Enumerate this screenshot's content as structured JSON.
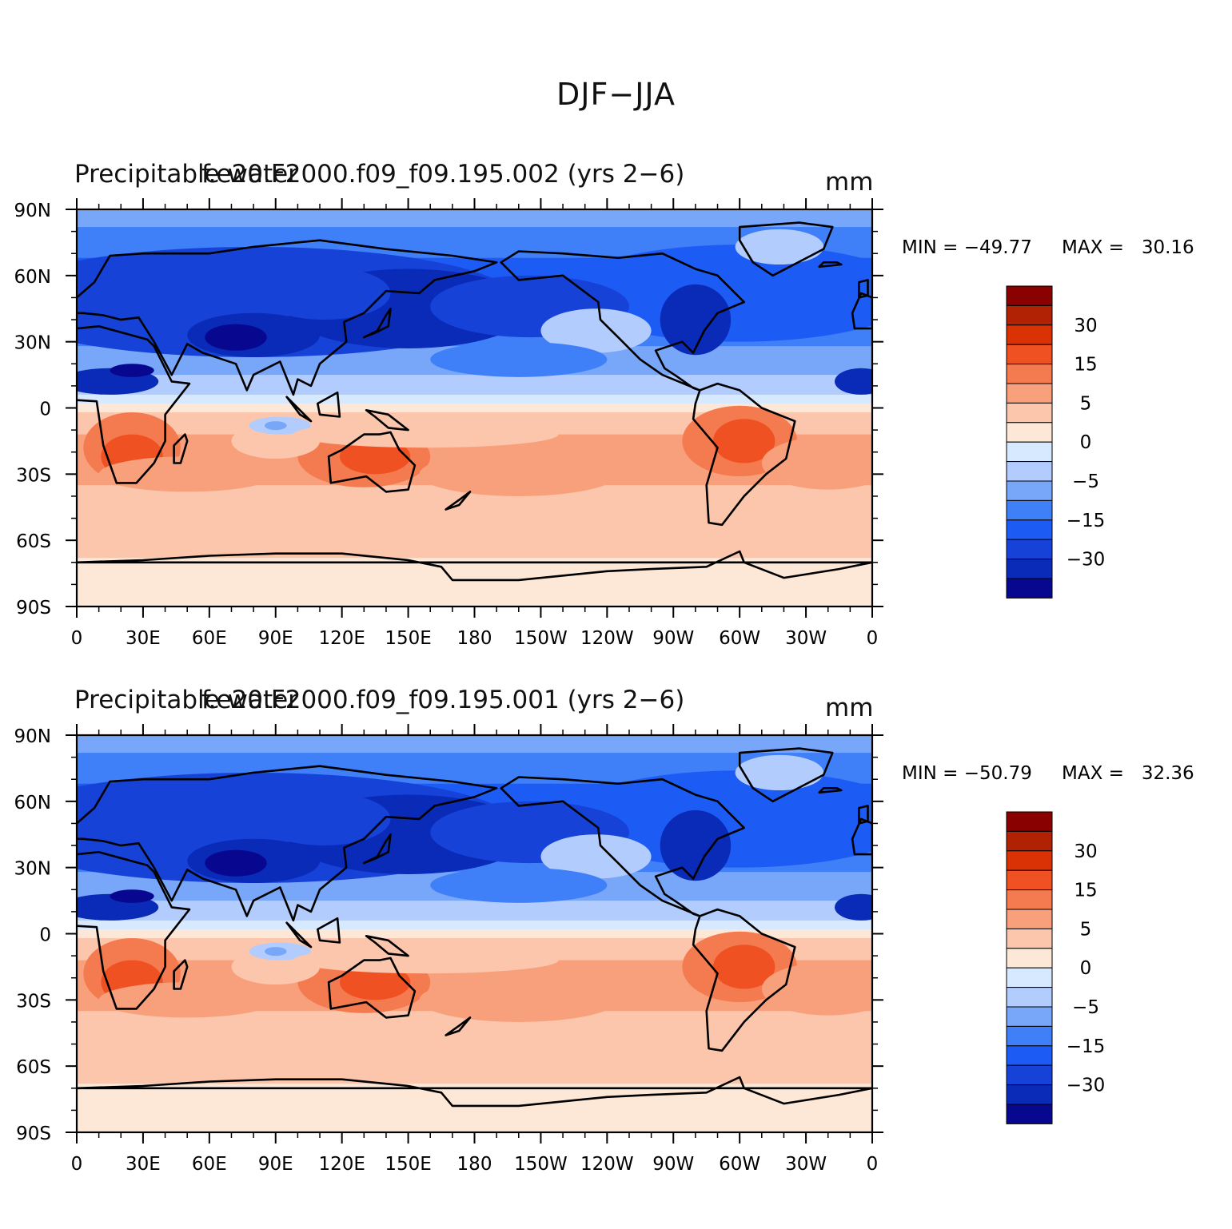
{
  "main_title": "DJF−JJA",
  "colors": [
    "#08078f",
    "#0a2ab8",
    "#1642d8",
    "#1d5bf5",
    "#3f7ff7",
    "#78a7f9",
    "#b2cdfd",
    "#d7e9ff",
    "#fde8d8",
    "#fbc6ab",
    "#f8a07c",
    "#f47a4f",
    "#f05123",
    "#db3205",
    "#b02203",
    "#8a0101"
  ],
  "colorbar_labels": [
    "30",
    "15",
    "5",
    "0",
    "−5",
    "−15",
    "−30"
  ],
  "x_ticks": [
    "0",
    "30E",
    "60E",
    "90E",
    "120E",
    "150E",
    "180",
    "150W",
    "120W",
    "90W",
    "60W",
    "30W",
    "0"
  ],
  "y_ticks": [
    "90N",
    "60N",
    "30N",
    "0",
    "30S",
    "60S",
    "90S"
  ],
  "panels": [
    {
      "variable": "Precipitable water",
      "case": "f.e20.F2000.f09_f09.195.002 (yrs 2−6)",
      "units": "mm",
      "min_label": "MIN = −49.77",
      "max_label": "MAX =   30.16"
    },
    {
      "variable": "Precipitable water",
      "case": "f.e20.F2000.f09_f09.195.001 (yrs 2−6)",
      "units": "mm",
      "min_label": "MIN = −50.79",
      "max_label": "MAX =   32.36"
    }
  ]
}
